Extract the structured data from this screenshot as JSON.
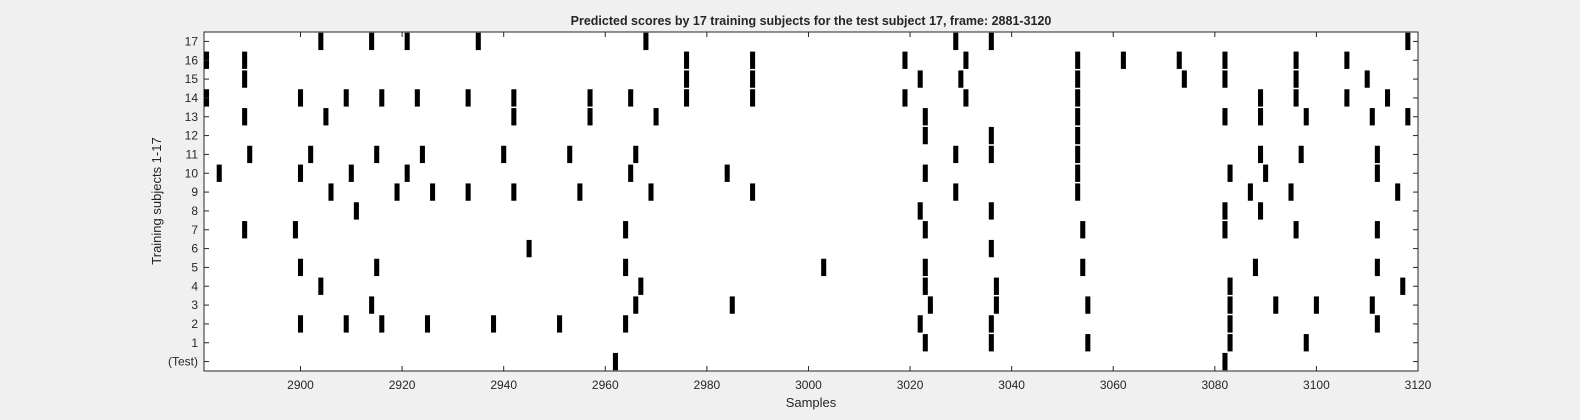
{
  "chart_data": {
    "type": "scatter",
    "title": "Predicted scores by 17 training subjects for the test subject 17, frame: 2881-3120",
    "xlabel": "Samples",
    "ylabel": "Training subjects 1-17",
    "xlim": [
      2881,
      3120
    ],
    "x_ticks": [
      "2900",
      "2920",
      "2940",
      "2960",
      "2980",
      "3000",
      "3020",
      "3040",
      "3060",
      "3080",
      "3100",
      "3120"
    ],
    "y_tick_labels": [
      "(Test)",
      "1",
      "2",
      "3",
      "4",
      "5",
      "6",
      "7",
      "8",
      "9",
      "10",
      "11",
      "12",
      "13",
      "14",
      "15",
      "16",
      "17"
    ],
    "grid": false,
    "background_color": "#ffffff",
    "mark_color": "#000000",
    "series": [
      {
        "label": "(Test)",
        "x": [
          2962,
          3082
        ]
      },
      {
        "label": "1",
        "x": [
          3023,
          3036,
          3055,
          3083,
          3098
        ]
      },
      {
        "label": "2",
        "x": [
          2900,
          2909,
          2916,
          2925,
          2938,
          2951,
          2964,
          3022,
          3036,
          3083,
          3112
        ]
      },
      {
        "label": "3",
        "x": [
          2914,
          2966,
          2985,
          3024,
          3037,
          3055,
          3083,
          3092,
          3100,
          3111
        ]
      },
      {
        "label": "4",
        "x": [
          2904,
          2967,
          3023,
          3037,
          3083,
          3117
        ]
      },
      {
        "label": "5",
        "x": [
          2900,
          2915,
          2964,
          3003,
          3023,
          3054,
          3088,
          3112
        ]
      },
      {
        "label": "6",
        "x": [
          2945,
          3036
        ]
      },
      {
        "label": "7",
        "x": [
          2889,
          2899,
          2964,
          3023,
          3054,
          3082,
          3096,
          3112
        ]
      },
      {
        "label": "8",
        "x": [
          2911,
          3022,
          3036,
          3082,
          3089
        ]
      },
      {
        "label": "9",
        "x": [
          2906,
          2919,
          2926,
          2933,
          2942,
          2955,
          2969,
          2989,
          3029,
          3053,
          3087,
          3095,
          3116
        ]
      },
      {
        "label": "10",
        "x": [
          2884,
          2900,
          2910,
          2921,
          2965,
          2984,
          3023,
          3053,
          3083,
          3090,
          3112
        ]
      },
      {
        "label": "11",
        "x": [
          2890,
          2902,
          2915,
          2924,
          2940,
          2953,
          2966,
          3029,
          3036,
          3053,
          3089,
          3097,
          3112
        ]
      },
      {
        "label": "12",
        "x": [
          3023,
          3036,
          3053
        ]
      },
      {
        "label": "13",
        "x": [
          2889,
          2905,
          2942,
          2957,
          2970,
          3023,
          3053,
          3082,
          3089,
          3098,
          3111,
          3118
        ]
      },
      {
        "label": "14",
        "x": [
          2881,
          2900,
          2909,
          2916,
          2923,
          2933,
          2942,
          2957,
          2965,
          2976,
          2989,
          3019,
          3031,
          3053,
          3089,
          3096,
          3106,
          3114
        ]
      },
      {
        "label": "15",
        "x": [
          2889,
          2976,
          2989,
          3022,
          3030,
          3053,
          3074,
          3082,
          3096,
          3110
        ]
      },
      {
        "label": "16",
        "x": [
          2881,
          2889,
          2976,
          2989,
          3019,
          3031,
          3053,
          3062,
          3073,
          3082,
          3096,
          3106
        ]
      },
      {
        "label": "17",
        "x": [
          2904,
          2914,
          2921,
          2935,
          2968,
          3029,
          3036,
          3118
        ]
      }
    ]
  }
}
